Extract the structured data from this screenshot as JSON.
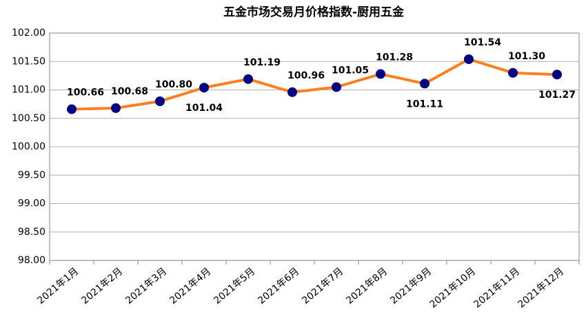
{
  "chart_data": {
    "type": "line",
    "title": "五金市场交易月价格指数-厨用五金",
    "categories": [
      "2021年1月",
      "2021年2月",
      "2021年3月",
      "2021年4月",
      "2021年5月",
      "2021年6月",
      "2021年7月",
      "2021年8月",
      "2021年9月",
      "2021年10月",
      "2021年11月",
      "2021年12月"
    ],
    "series": [
      {
        "color": "#ff7f1e",
        "marker_color": "#000080",
        "values": [
          100.66,
          100.68,
          100.8,
          101.04,
          101.19,
          100.96,
          101.05,
          101.28,
          101.11,
          101.54,
          101.3,
          101.27
        ],
        "value_labels": [
          "100.66",
          "100.68",
          "100.80",
          "101.04",
          "101.19",
          "100.96",
          "101.05",
          "101.28",
          "101.11",
          "101.54",
          "101.30",
          "101.27"
        ]
      }
    ],
    "ylim": [
      98,
      102
    ],
    "yticks": [
      {
        "value": 98,
        "label": "98.00"
      },
      {
        "value": 98.5,
        "label": "98.50"
      },
      {
        "value": 99,
        "label": "99.00"
      },
      {
        "value": 99.5,
        "label": "99.50"
      },
      {
        "value": 100,
        "label": "100.00"
      },
      {
        "value": 100.5,
        "label": "100.50"
      },
      {
        "value": 101,
        "label": "101.00"
      },
      {
        "value": 101.5,
        "label": "101.50"
      },
      {
        "value": 102,
        "label": "102.00"
      }
    ],
    "grid": true
  }
}
